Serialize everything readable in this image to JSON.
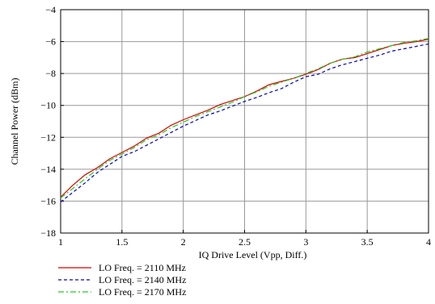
{
  "chart_data": {
    "type": "line",
    "title": "",
    "xlabel": "IQ Drive Level (Vpp, Diff.)",
    "ylabel": "Channel Power (dBm)",
    "xlim": [
      1,
      4
    ],
    "ylim": [
      -18,
      -4
    ],
    "xticks": [
      1,
      1.5,
      2,
      2.5,
      3,
      3.5,
      4
    ],
    "xtick_labels": [
      "1",
      "1.5",
      "2",
      "2.5",
      "3",
      "3.5",
      "4"
    ],
    "yticks": [
      -18,
      -16,
      -14,
      -12,
      -10,
      -8,
      -6,
      -4
    ],
    "ytick_labels": [
      "−18",
      "−16",
      "−14",
      "−12",
      "−10",
      "−8",
      "−6",
      "−4"
    ],
    "grid": true,
    "legend_position": "below",
    "series": [
      {
        "name": "LO Freq. = 2110 MHz",
        "color": "#dd0000",
        "style": "solid",
        "x": [
          1.0,
          1.1,
          1.2,
          1.3,
          1.4,
          1.5,
          1.6,
          1.7,
          1.8,
          1.9,
          2.0,
          2.1,
          2.2,
          2.3,
          2.4,
          2.5,
          2.6,
          2.7,
          2.8,
          2.9,
          3.0,
          3.1,
          3.2,
          3.3,
          3.4,
          3.5,
          3.6,
          3.7,
          3.8,
          3.9,
          4.0
        ],
        "y": [
          -15.75,
          -15.0,
          -14.35,
          -13.9,
          -13.35,
          -12.95,
          -12.55,
          -12.05,
          -11.75,
          -11.25,
          -10.9,
          -10.6,
          -10.3,
          -9.95,
          -9.7,
          -9.45,
          -9.1,
          -8.7,
          -8.5,
          -8.3,
          -8.05,
          -7.75,
          -7.35,
          -7.1,
          -7.0,
          -6.75,
          -6.5,
          -6.25,
          -6.1,
          -6.0,
          -5.85
        ]
      },
      {
        "name": "LO Freq. = 2140 MHz",
        "color": "#0000cc",
        "style": "dashed",
        "x": [
          1.0,
          1.1,
          1.2,
          1.3,
          1.4,
          1.5,
          1.6,
          1.7,
          1.8,
          1.9,
          2.0,
          2.1,
          2.2,
          2.3,
          2.4,
          2.5,
          2.6,
          2.7,
          2.8,
          2.9,
          3.0,
          3.1,
          3.2,
          3.3,
          3.4,
          3.5,
          3.6,
          3.7,
          3.8,
          3.9,
          4.0
        ],
        "y": [
          -16.05,
          -15.45,
          -14.85,
          -14.2,
          -13.7,
          -13.2,
          -12.9,
          -12.5,
          -12.1,
          -11.7,
          -11.3,
          -10.95,
          -10.6,
          -10.35,
          -10.05,
          -9.75,
          -9.5,
          -9.2,
          -8.95,
          -8.55,
          -8.2,
          -8.05,
          -7.7,
          -7.45,
          -7.25,
          -7.05,
          -6.85,
          -6.6,
          -6.45,
          -6.3,
          -6.15
        ]
      },
      {
        "name": "LO Freq. = 2170 MHz",
        "color": "#22cc22",
        "style": "dashdot",
        "x": [
          1.0,
          1.1,
          1.2,
          1.3,
          1.4,
          1.5,
          1.6,
          1.7,
          1.8,
          1.9,
          2.0,
          2.1,
          2.2,
          2.3,
          2.4,
          2.5,
          2.6,
          2.7,
          2.8,
          2.9,
          3.0,
          3.1,
          3.2,
          3.3,
          3.4,
          3.5,
          3.6,
          3.7,
          3.8,
          3.9,
          4.0
        ],
        "y": [
          -15.8,
          -15.2,
          -14.6,
          -14.0,
          -13.45,
          -13.05,
          -12.65,
          -12.15,
          -11.85,
          -11.4,
          -11.05,
          -10.7,
          -10.4,
          -10.1,
          -9.8,
          -9.45,
          -9.15,
          -8.8,
          -8.55,
          -8.3,
          -8.0,
          -7.7,
          -7.35,
          -7.1,
          -6.95,
          -6.65,
          -6.45,
          -6.25,
          -6.05,
          -5.95,
          -5.8
        ]
      }
    ]
  }
}
